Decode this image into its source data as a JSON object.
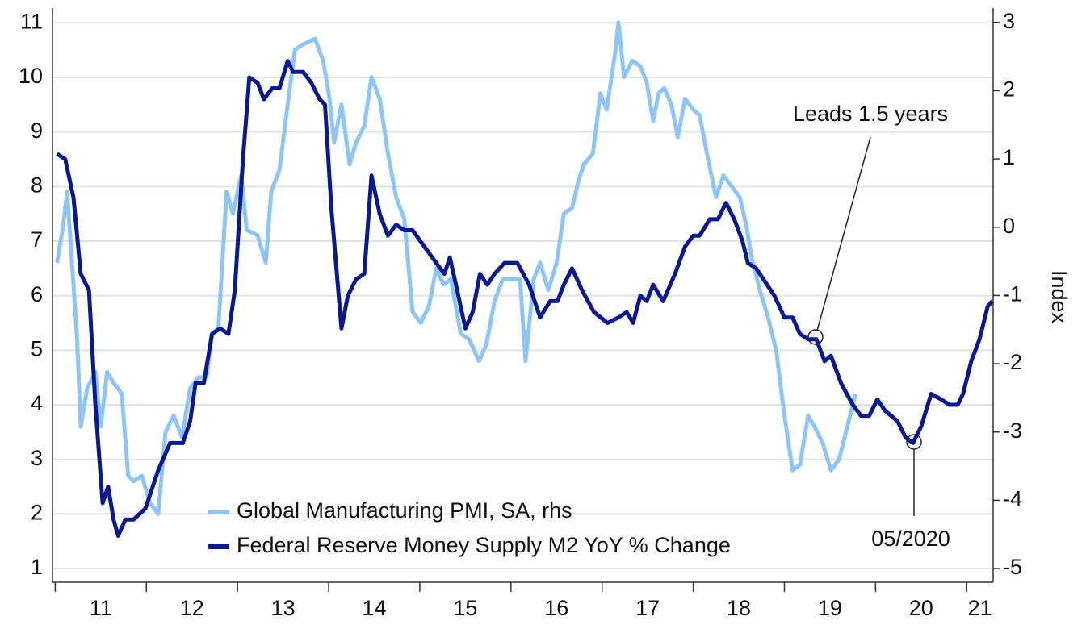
{
  "chart_data": {
    "type": "line",
    "ylabel2": "Index",
    "annotations": [
      "Leads 1.5 years",
      "05/2020"
    ],
    "xlim": [
      10.97,
      21.29
    ],
    "xticks": [
      11,
      12,
      13,
      14,
      15,
      16,
      17,
      18,
      19,
      20,
      21
    ],
    "ylim": [
      0.75,
      11.27
    ],
    "yticks": [
      1,
      2,
      3,
      4,
      5,
      6,
      7,
      8,
      9,
      10,
      11
    ],
    "y2lim": [
      -5.2,
      3.21
    ],
    "y2ticks": [
      -5,
      -4,
      -3,
      -2,
      -1,
      0,
      1,
      2,
      3
    ],
    "grid": true,
    "legend": "lower left",
    "series": [
      {
        "name": "Global Manufacturing PMI, SA, rhs",
        "color": "#8ec5f5",
        "axis": "y2",
        "x": [
          11.02,
          11.09,
          11.13,
          11.2,
          11.24,
          11.28,
          11.35,
          11.44,
          11.5,
          11.57,
          11.64,
          11.73,
          11.8,
          11.86,
          11.95,
          12.04,
          12.13,
          12.21,
          12.3,
          12.39,
          12.48,
          12.57,
          12.66,
          12.72,
          12.79,
          12.88,
          12.95,
          13.04,
          13.1,
          13.22,
          13.31,
          13.37,
          13.46,
          13.55,
          13.63,
          13.72,
          13.85,
          13.94,
          14.01,
          14.06,
          14.14,
          14.23,
          14.3,
          14.39,
          14.47,
          14.56,
          14.65,
          14.74,
          14.83,
          14.92,
          15.01,
          15.1,
          15.18,
          15.26,
          15.34,
          15.45,
          15.54,
          15.65,
          15.73,
          15.82,
          15.91,
          16.02,
          16.1,
          16.16,
          16.25,
          16.32,
          16.41,
          16.5,
          16.58,
          16.67,
          16.74,
          16.8,
          16.9,
          16.98,
          17.05,
          17.14,
          17.18,
          17.24,
          17.33,
          17.42,
          17.49,
          17.56,
          17.62,
          17.68,
          17.76,
          17.83,
          17.91,
          18.0,
          18.07,
          18.15,
          18.25,
          18.33,
          18.42,
          18.51,
          18.58,
          18.64,
          18.73,
          18.82,
          18.91,
          19.0,
          19.09,
          19.17,
          19.26,
          19.33,
          19.42,
          19.51,
          19.6,
          19.69,
          19.78
        ],
        "values": [
          -0.52,
          0.04,
          0.52,
          -0.84,
          -1.64,
          -2.92,
          -2.36,
          -2.12,
          -2.92,
          -2.12,
          -2.28,
          -2.44,
          -3.64,
          -3.72,
          -3.64,
          -4.04,
          -4.2,
          -3.0,
          -2.76,
          -3.08,
          -2.36,
          -2.2,
          -2.2,
          -1.56,
          -1.48,
          0.52,
          0.2,
          0.76,
          -0.04,
          -0.12,
          -0.52,
          0.52,
          0.84,
          1.8,
          2.6,
          2.68,
          2.76,
          2.44,
          1.88,
          1.24,
          1.8,
          0.92,
          1.24,
          1.48,
          2.2,
          1.88,
          1.08,
          0.44,
          0.12,
          -1.24,
          -1.4,
          -1.16,
          -0.6,
          -0.84,
          -0.76,
          -1.56,
          -1.64,
          -1.96,
          -1.72,
          -1.08,
          -0.76,
          -0.76,
          -0.76,
          -1.96,
          -0.76,
          -0.52,
          -0.92,
          -0.52,
          0.2,
          0.28,
          0.68,
          0.92,
          1.08,
          1.96,
          1.72,
          2.52,
          3.0,
          2.2,
          2.44,
          2.36,
          2.12,
          1.56,
          1.96,
          2.04,
          1.8,
          1.32,
          1.88,
          1.72,
          1.64,
          1.08,
          0.44,
          0.76,
          0.6,
          0.44,
          0.04,
          -0.44,
          -0.92,
          -1.32,
          -1.8,
          -2.76,
          -3.56,
          -3.48,
          -2.76,
          -2.92,
          -3.16,
          -3.56,
          -3.4,
          -2.92,
          -2.44
        ]
      },
      {
        "name": "Federal Reserve Money Supply M2 YoY % Change",
        "color": "#0a1a8c",
        "x": [
          11.02,
          11.11,
          11.2,
          11.28,
          11.37,
          11.44,
          11.52,
          11.58,
          11.64,
          11.69,
          11.77,
          11.86,
          11.99,
          12.13,
          12.26,
          12.4,
          12.48,
          12.54,
          12.63,
          12.72,
          12.81,
          12.9,
          12.97,
          13.06,
          13.13,
          13.22,
          13.29,
          13.38,
          13.46,
          13.55,
          13.61,
          13.72,
          13.81,
          13.9,
          13.96,
          14.03,
          14.14,
          14.21,
          14.3,
          14.39,
          14.47,
          14.56,
          14.65,
          14.74,
          14.83,
          14.92,
          15.05,
          15.18,
          15.27,
          15.33,
          15.41,
          15.5,
          15.58,
          15.66,
          15.74,
          15.82,
          15.93,
          16.07,
          16.2,
          16.32,
          16.43,
          16.51,
          16.58,
          16.67,
          16.78,
          16.91,
          17.06,
          17.18,
          17.27,
          17.34,
          17.42,
          17.49,
          17.56,
          17.67,
          17.8,
          17.91,
          18.0,
          18.07,
          18.18,
          18.27,
          18.36,
          18.45,
          18.54,
          18.6,
          18.69,
          18.77,
          18.89,
          19.0,
          19.09,
          19.17,
          19.26,
          19.35,
          19.44,
          19.51,
          19.62,
          19.75,
          19.84,
          19.93,
          20.02,
          20.1,
          20.24,
          20.33,
          20.41,
          20.5,
          20.61,
          20.72,
          20.81,
          20.9,
          20.96,
          21.05,
          21.14,
          21.23,
          21.28
        ],
        "values": [
          8.6,
          8.5,
          7.8,
          6.4,
          6.1,
          4.0,
          2.2,
          2.5,
          1.9,
          1.6,
          1.9,
          1.9,
          2.1,
          2.8,
          3.3,
          3.3,
          3.7,
          4.4,
          4.4,
          5.3,
          5.4,
          5.3,
          6.1,
          8.5,
          10.0,
          9.9,
          9.6,
          9.8,
          9.8,
          10.3,
          10.1,
          10.1,
          9.9,
          9.6,
          9.5,
          7.6,
          5.4,
          6.0,
          6.3,
          6.4,
          8.2,
          7.5,
          7.1,
          7.3,
          7.2,
          7.2,
          6.9,
          6.6,
          6.4,
          6.7,
          6.1,
          5.4,
          5.7,
          6.4,
          6.2,
          6.4,
          6.6,
          6.6,
          6.2,
          5.6,
          5.9,
          5.9,
          6.2,
          6.5,
          6.1,
          5.7,
          5.5,
          5.6,
          5.7,
          5.5,
          6.0,
          5.9,
          6.2,
          5.9,
          6.4,
          6.9,
          7.1,
          7.1,
          7.4,
          7.4,
          7.7,
          7.4,
          7.0,
          6.6,
          6.5,
          6.3,
          6.0,
          5.6,
          5.6,
          5.3,
          5.2,
          5.2,
          4.8,
          4.9,
          4.4,
          4.0,
          3.8,
          3.8,
          4.1,
          3.9,
          3.7,
          3.4,
          3.3,
          3.6,
          4.2,
          4.1,
          4.0,
          4.0,
          4.2,
          4.8,
          5.2,
          5.8,
          5.9
        ]
      }
    ]
  }
}
